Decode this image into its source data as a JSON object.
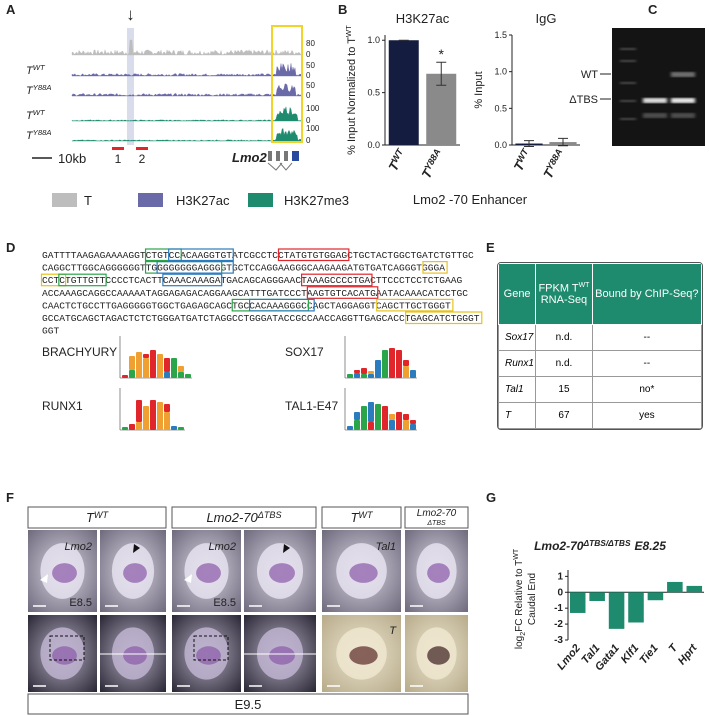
{
  "panel_labels": [
    "A",
    "B",
    "C",
    "D",
    "E",
    "F",
    "G"
  ],
  "panel_a": {
    "arrow": "↓",
    "track_labels": [
      {
        "text": "T",
        "sup": "WT"
      },
      {
        "text": "T",
        "sup": "Y88A"
      },
      {
        "text": "T",
        "sup": "WT"
      },
      {
        "text": "T",
        "sup": "Y88A"
      }
    ],
    "track_ranges": [
      [
        0,
        80
      ],
      [
        0,
        50
      ],
      [
        0,
        50
      ],
      [
        0,
        100
      ],
      [
        0,
        100
      ]
    ],
    "track_colors": [
      "#bdbdbd",
      "#6b6aa8",
      "#6b6aa8",
      "#1e8a6e",
      "#1e8a6e"
    ],
    "scale_bar": "10kb",
    "regions": [
      "1",
      "2"
    ],
    "gene": "Lmo2",
    "legend": [
      {
        "name": "T",
        "color": "#bdbdbd"
      },
      {
        "name": "H3K27ac",
        "color": "#6b6aa8"
      },
      {
        "name": "H3K27me3",
        "color": "#1e8a6e"
      }
    ]
  },
  "chart_data": [
    {
      "type": "bar",
      "title": "H3K27ac",
      "ylabel": {
        "text": "% Input Normalized to T",
        "sup": "WT"
      },
      "categories": [
        {
          "text": "T",
          "sup": "WT"
        },
        {
          "text": "T",
          "sup": "Y88A"
        }
      ],
      "values": [
        1.0,
        0.68
      ],
      "errors": [
        0,
        0.11
      ],
      "colors": [
        "#141d3f",
        "#8a8a8a"
      ],
      "annotation": "*",
      "ylim": [
        0,
        1.05
      ],
      "yticks": [
        {
          "value": 0,
          "label": "0.0"
        },
        {
          "value": 0.5,
          "label": "0.5"
        },
        {
          "value": 1,
          "label": "1.0"
        }
      ]
    },
    {
      "type": "bar",
      "title": "IgG",
      "ylabel": {
        "text": "% Input"
      },
      "categories": [
        {
          "text": "T",
          "sup": "WT"
        },
        {
          "text": "T",
          "sup": "Y88A"
        }
      ],
      "values": [
        0.02,
        0.04
      ],
      "errors": [
        0.04,
        0.05
      ],
      "colors": [
        "#141d3f",
        "#8a8a8a"
      ],
      "ylim": [
        0,
        1.5
      ],
      "yticks": [
        {
          "value": 0,
          "label": "0.0"
        },
        {
          "value": 0.5,
          "label": "0.5"
        },
        {
          "value": 1,
          "label": "1.0"
        },
        {
          "value": 1.5,
          "label": "1.5"
        }
      ]
    },
    {
      "type": "bar",
      "title": {
        "text": "Lmo2-70",
        "sup": "ΔTBS/ΔTBS",
        "text3": "E8.25"
      },
      "ylabel": {
        "text": "log",
        "sub": "2",
        "text2": "FC Relative to T",
        "sup": "WT",
        "line2": "Caudal End"
      },
      "categories": [
        {
          "text": "Lmo2"
        },
        {
          "text": "Tal1"
        },
        {
          "text": "Gata1"
        },
        {
          "text": "Klf1"
        },
        {
          "text": "Tie1"
        },
        {
          "text": "T"
        },
        {
          "text": "Hprt"
        }
      ],
      "values": [
        -1.3,
        -0.55,
        -2.3,
        -1.9,
        -0.5,
        0.65,
        0.4
      ],
      "color": "#1e8a6e",
      "ylim": [
        -3,
        1.4
      ],
      "yticks": [
        1,
        0,
        -1,
        -2,
        -3
      ]
    }
  ],
  "panel_b_xlabel": "Lmo2 -70 Enhancer",
  "panel_c": {
    "labels": [
      "WT",
      "ΔTBS"
    ]
  },
  "panel_d": {
    "sequence": [
      "GATTTTAAGAGAAAAGGTCTGTCCACAAGGTGTATCGCCTCCTATGTGTGGAGCTGCTACTGGCTGATCTGTTGC",
      "CAGGCTTGGCAGGGGGGTTGGGGGGGGAGGGGTGCTCCAGGAAGGGCAAGAAGATGTGATCAGGGTGGGA",
      "CCTCTGTTGTTCCCCTCACTTCAAACAAAGATGACAGCAGGGAACTAAAGCCCCTGACTTCCCTCCTCTGAAG",
      "ACCAAAGCAGGCCAAAAATAGGAGAGACAGGAAGCATTTGATCCCTAAGTGTCACATGAATACAAACATCCTGC",
      "CAACTCTGCCTTGAGGGGGTGGCTGAGAGCAGCTGCCACAAAGGGCCAGCTAGGAGGTCAGCTTGCTGGGT",
      "GCCATGCAGCTAGACTCTCTGGGATGATCTAGGCCTGGGATACCGCCAACCAGGTTGAGCACCTGAGCATCTGGGT",
      "GGT"
    ],
    "motifs": [
      {
        "name": "BRACHYURY",
        "color": "#e0262b"
      },
      {
        "name": "SOX17",
        "color": "#2b7bbf"
      },
      {
        "name": "RUNX1",
        "color": "#2aa54a"
      },
      {
        "name": "TAL1-E47",
        "color": "#e8c21c"
      }
    ]
  },
  "panel_e": {
    "header": [
      "Gene",
      {
        "text": "FPKM T",
        "sup": "WT",
        "line2": "RNA-Seq"
      },
      "Bound by ChIP-Seq?"
    ],
    "rows": [
      [
        "Sox17",
        "n.d.",
        "--"
      ],
      [
        "Runx1",
        "n.d.",
        "--"
      ],
      [
        "Tal1",
        15,
        "no*"
      ],
      [
        "T",
        67,
        "yes"
      ]
    ]
  },
  "panel_f": {
    "genotypes": [
      {
        "text": "T",
        "sup": "WT"
      },
      {
        "text": "Lmo2-70",
        "sup": "ΔTBS"
      },
      {
        "text": "T",
        "sup": "WT"
      },
      {
        "text": "Lmo2-70",
        "line2": "ΔTBS"
      }
    ],
    "photo_labels": [
      "Lmo2",
      "E8.5",
      "Lmo2",
      "E8.5",
      "Tal1",
      "T"
    ],
    "stage": "E9.5"
  }
}
